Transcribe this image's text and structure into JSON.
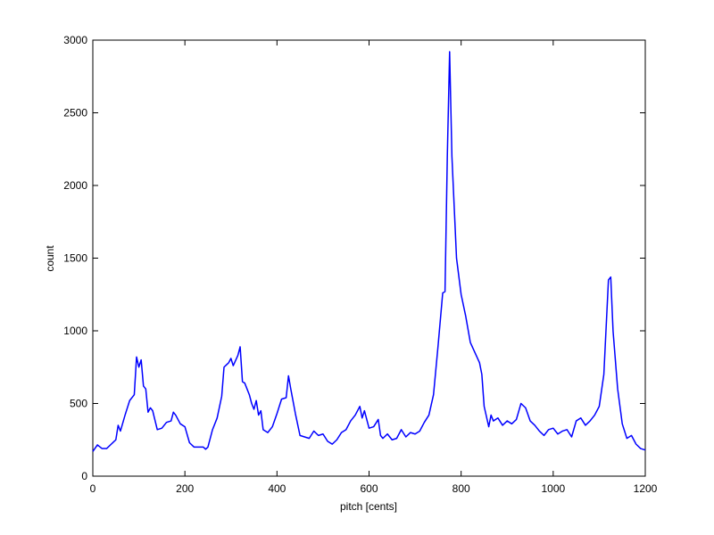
{
  "chart_data": {
    "type": "line",
    "x": [
      0,
      10,
      20,
      30,
      40,
      50,
      55,
      60,
      70,
      80,
      90,
      95,
      100,
      105,
      110,
      115,
      120,
      125,
      130,
      140,
      150,
      160,
      170,
      175,
      180,
      190,
      200,
      210,
      220,
      230,
      240,
      245,
      250,
      260,
      270,
      280,
      285,
      295,
      300,
      305,
      315,
      320,
      325,
      330,
      340,
      345,
      350,
      355,
      360,
      365,
      370,
      380,
      390,
      400,
      410,
      420,
      425,
      430,
      440,
      450,
      460,
      470,
      480,
      490,
      500,
      510,
      520,
      530,
      540,
      550,
      560,
      570,
      580,
      585,
      590,
      600,
      610,
      620,
      625,
      630,
      640,
      650,
      660,
      670,
      680,
      690,
      700,
      710,
      720,
      730,
      740,
      750,
      760,
      765,
      770,
      775,
      780,
      790,
      800,
      810,
      820,
      830,
      840,
      845,
      850,
      860,
      865,
      870,
      880,
      890,
      900,
      910,
      920,
      930,
      940,
      950,
      960,
      970,
      980,
      990,
      1000,
      1010,
      1020,
      1030,
      1040,
      1050,
      1060,
      1070,
      1080,
      1090,
      1100,
      1110,
      1120,
      1125,
      1130,
      1140,
      1150,
      1160,
      1170,
      1180,
      1190,
      1200
    ],
    "values": [
      170,
      215,
      190,
      190,
      220,
      250,
      350,
      310,
      420,
      520,
      560,
      820,
      750,
      800,
      620,
      600,
      440,
      470,
      450,
      320,
      330,
      370,
      380,
      440,
      420,
      360,
      340,
      230,
      200,
      200,
      200,
      185,
      200,
      320,
      400,
      550,
      750,
      780,
      810,
      760,
      830,
      890,
      650,
      640,
      560,
      500,
      460,
      520,
      420,
      450,
      320,
      300,
      340,
      430,
      530,
      540,
      690,
      600,
      430,
      280,
      270,
      260,
      310,
      280,
      290,
      240,
      220,
      250,
      300,
      320,
      380,
      420,
      480,
      400,
      450,
      330,
      340,
      390,
      280,
      260,
      290,
      250,
      260,
      320,
      270,
      300,
      290,
      310,
      370,
      420,
      560,
      900,
      1260,
      1270,
      2200,
      2920,
      2200,
      1500,
      1250,
      1100,
      920,
      850,
      780,
      700,
      480,
      340,
      420,
      380,
      400,
      350,
      380,
      360,
      390,
      500,
      470,
      380,
      350,
      310,
      280,
      320,
      330,
      290,
      310,
      320,
      270,
      380,
      400,
      350,
      380,
      420,
      480,
      700,
      1350,
      1370,
      1000,
      600,
      360,
      260,
      280,
      220,
      190,
      180
    ],
    "color": "#0000ff",
    "xlabel": "pitch [cents]",
    "ylabel": "count",
    "xlim": [
      0,
      1200
    ],
    "xticks": [
      0,
      200,
      400,
      600,
      800,
      1000,
      1200
    ],
    "ylim": [
      0,
      3000
    ],
    "yticks": [
      0,
      500,
      1000,
      1500,
      2000,
      2500,
      3000
    ],
    "grid": false
  }
}
